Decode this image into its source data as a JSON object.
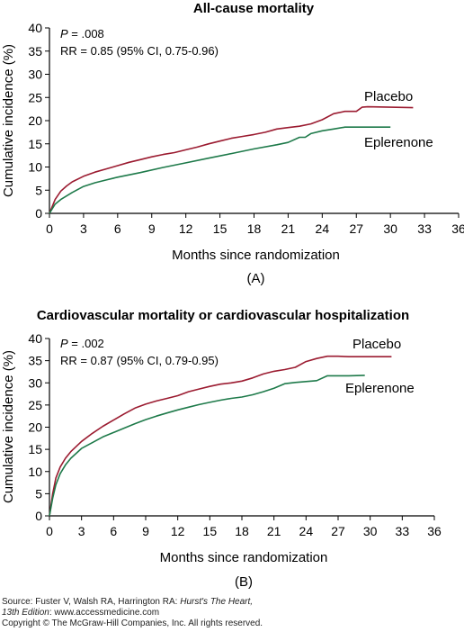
{
  "chart_data": [
    {
      "type": "line",
      "title": "All-cause mortality",
      "xlabel": "Months since randomization",
      "ylabel": "Cumulative incidence (%)",
      "caption": "(A)",
      "xlim": [
        0,
        36
      ],
      "ylim": [
        0,
        40
      ],
      "xticks": [
        0,
        3,
        6,
        9,
        12,
        15,
        18,
        21,
        24,
        27,
        30,
        33,
        36
      ],
      "yticks": [
        0,
        5,
        10,
        15,
        20,
        25,
        30,
        35,
        40
      ],
      "annotations": {
        "p_label": "P",
        "p_value": " = .008",
        "rr": "RR = 0.85 (95% CI, 0.75-0.96)"
      },
      "series": [
        {
          "name": "Placebo",
          "color": "#9b1b30",
          "x": [
            0,
            0.5,
            1,
            1.5,
            2,
            3,
            4,
            5,
            6,
            7,
            8,
            9,
            10,
            11,
            12,
            13,
            14,
            15,
            16,
            17,
            18,
            19,
            20,
            21,
            22,
            23,
            24,
            25,
            26,
            27,
            27.5,
            28,
            30,
            32
          ],
          "y": [
            0,
            3,
            4.8,
            5.9,
            6.8,
            8,
            8.9,
            9.6,
            10.3,
            11,
            11.6,
            12.2,
            12.7,
            13.1,
            13.7,
            14.3,
            15,
            15.6,
            16.2,
            16.6,
            17,
            17.5,
            18.2,
            18.5,
            18.8,
            19.3,
            20.2,
            21.5,
            22,
            22,
            22.9,
            23,
            22.9,
            22.8
          ]
        },
        {
          "name": "Eplerenone",
          "color": "#1e7a4a",
          "x": [
            0,
            0.5,
            1,
            2,
            3,
            4,
            5,
            6,
            8,
            10,
            12,
            14,
            16,
            18,
            20,
            21,
            22,
            22.5,
            23,
            24,
            25,
            26,
            27,
            28,
            29,
            30
          ],
          "y": [
            0,
            2,
            3,
            4.5,
            5.8,
            6.6,
            7.2,
            7.8,
            8.8,
            9.9,
            10.9,
            11.9,
            12.9,
            13.9,
            14.8,
            15.3,
            16.4,
            16.4,
            17.2,
            17.8,
            18.2,
            18.6,
            18.6,
            18.6,
            18.6,
            18.6
          ]
        }
      ]
    },
    {
      "type": "line",
      "title": "Cardiovascular mortality or cardiovascular hospitalization",
      "xlabel": "Months since randomization",
      "ylabel": "Cumulative incidence (%)",
      "caption": "(B)",
      "xlim": [
        0,
        36
      ],
      "ylim": [
        0,
        40
      ],
      "xticks": [
        0,
        3,
        6,
        9,
        12,
        15,
        18,
        21,
        24,
        27,
        30,
        33,
        36
      ],
      "yticks": [
        0,
        5,
        10,
        15,
        20,
        25,
        30,
        35,
        40
      ],
      "annotations": {
        "p_label": "P",
        "p_value": " = .002",
        "rr": "RR = 0.87 (95% CI, 0.79-0.95)"
      },
      "series": [
        {
          "name": "Placebo",
          "color": "#9b1b30",
          "x": [
            0,
            0.3,
            0.6,
            1,
            1.5,
            2,
            3,
            4,
            5,
            6,
            7,
            8,
            9,
            10,
            11,
            12,
            13,
            14,
            15,
            16,
            17,
            18,
            19,
            20,
            21,
            22,
            23,
            24,
            25,
            26,
            27,
            28,
            30,
            32
          ],
          "y": [
            0,
            5,
            8.5,
            11,
            13,
            14.5,
            16.8,
            18.6,
            20.2,
            21.6,
            23,
            24.3,
            25.2,
            25.9,
            26.5,
            27.1,
            28,
            28.6,
            29.2,
            29.7,
            30,
            30.4,
            31.1,
            32,
            32.6,
            33,
            33.5,
            34.8,
            35.5,
            36,
            36,
            35.9,
            35.9,
            35.9
          ]
        },
        {
          "name": "Eplerenone",
          "color": "#1e7a4a",
          "x": [
            0,
            0.3,
            0.6,
            1,
            1.5,
            2,
            3,
            4,
            5,
            6,
            7,
            8,
            9,
            10,
            11,
            12,
            13,
            14,
            15,
            16,
            17,
            18,
            19,
            20,
            21,
            22,
            23,
            24,
            25,
            26,
            27,
            28,
            29.5
          ],
          "y": [
            0,
            4,
            7,
            9.5,
            11.5,
            13,
            15.2,
            16.5,
            17.8,
            18.8,
            19.8,
            20.8,
            21.7,
            22.5,
            23.2,
            23.9,
            24.5,
            25.1,
            25.6,
            26.1,
            26.5,
            26.8,
            27.3,
            28,
            28.8,
            29.8,
            30.1,
            30.3,
            30.5,
            31.6,
            31.6,
            31.6,
            31.7
          ]
        }
      ]
    }
  ],
  "footer": {
    "line1_prefix": "Source: Fuster V, Walsh RA, Harrington RA: ",
    "line1_italic": "Hurst's The Heart,",
    "line2_italic": "13th Edition",
    "line2_rest": ": www.accessmedicine.com",
    "line3": "Copyright © The McGraw-Hill Companies, Inc. All rights reserved."
  }
}
